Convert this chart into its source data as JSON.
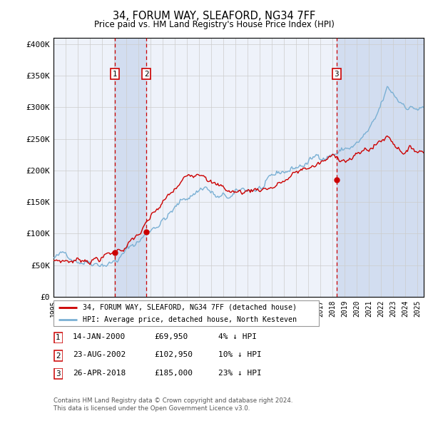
{
  "title": "34, FORUM WAY, SLEAFORD, NG34 7FF",
  "subtitle": "Price paid vs. HM Land Registry's House Price Index (HPI)",
  "ylabel_ticks": [
    "£0",
    "£50K",
    "£100K",
    "£150K",
    "£200K",
    "£250K",
    "£300K",
    "£350K",
    "£400K"
  ],
  "ytick_vals": [
    0,
    50000,
    100000,
    150000,
    200000,
    250000,
    300000,
    350000,
    400000
  ],
  "ylim": [
    0,
    410000
  ],
  "xlim_start": 1995.0,
  "xlim_end": 2025.5,
  "sale_dates": [
    2000.04,
    2002.65,
    2018.32
  ],
  "sale_prices": [
    69950,
    102950,
    185000
  ],
  "sale_labels": [
    "1",
    "2",
    "3"
  ],
  "sale_date_strs": [
    "14-JAN-2000",
    "23-AUG-2002",
    "26-APR-2018"
  ],
  "sale_price_strs": [
    "£69,950",
    "£102,950",
    "£185,000"
  ],
  "sale_hpi_strs": [
    "4% ↓ HPI",
    "10% ↓ HPI",
    "23% ↓ HPI"
  ],
  "legend_entry1": "34, FORUM WAY, SLEAFORD, NG34 7FF (detached house)",
  "legend_entry2": "HPI: Average price, detached house, North Kesteven",
  "footer1": "Contains HM Land Registry data © Crown copyright and database right 2024.",
  "footer2": "This data is licensed under the Open Government Licence v3.0.",
  "hpi_color": "#7ab0d4",
  "price_color": "#cc0000",
  "dashed_line_color": "#cc0000",
  "box_color": "#cc0000",
  "background_plot": "#eef2fa",
  "background_fig": "#ffffff",
  "grid_color": "#cccccc",
  "span_color": "#ccd8ee"
}
